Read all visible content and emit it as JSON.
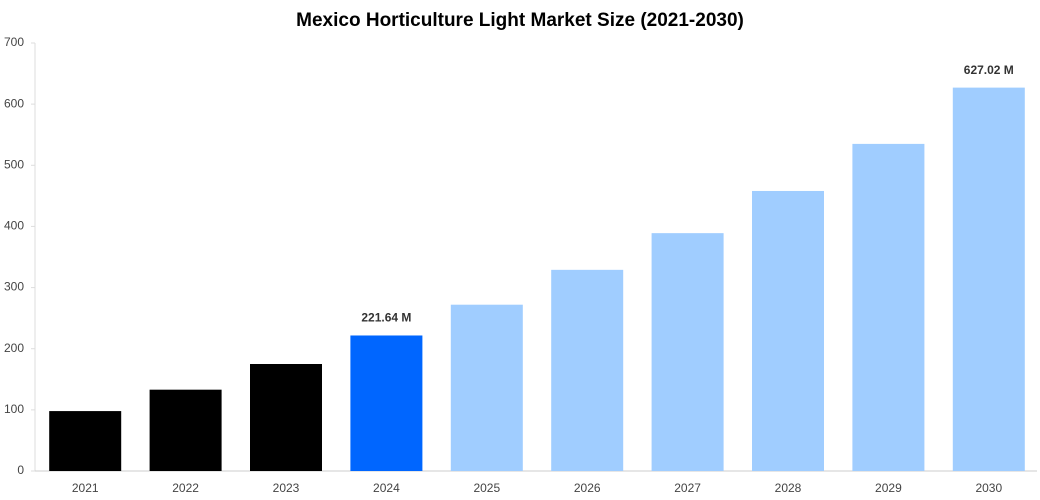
{
  "chart_data": {
    "type": "bar",
    "title": "Mexico Horticulture Light Market Size (2021-2030)",
    "categories": [
      "2021",
      "2022",
      "2023",
      "2024",
      "2025",
      "2026",
      "2027",
      "2028",
      "2029",
      "2030"
    ],
    "values": [
      98,
      133,
      175,
      221.64,
      272,
      329,
      389,
      458,
      535,
      627.02
    ],
    "value_labels": [
      null,
      null,
      null,
      "221.64 M",
      null,
      null,
      null,
      null,
      null,
      "627.02 M"
    ],
    "colors": [
      "#000000",
      "#000000",
      "#000000",
      "#0066ff",
      "#a0cdff",
      "#a0cdff",
      "#a0cdff",
      "#a0cdff",
      "#a0cdff",
      "#a0cdff"
    ],
    "ylim": [
      0,
      700
    ],
    "yticks": [
      0,
      100,
      200,
      300,
      400,
      500,
      600,
      700
    ],
    "grid": false
  }
}
